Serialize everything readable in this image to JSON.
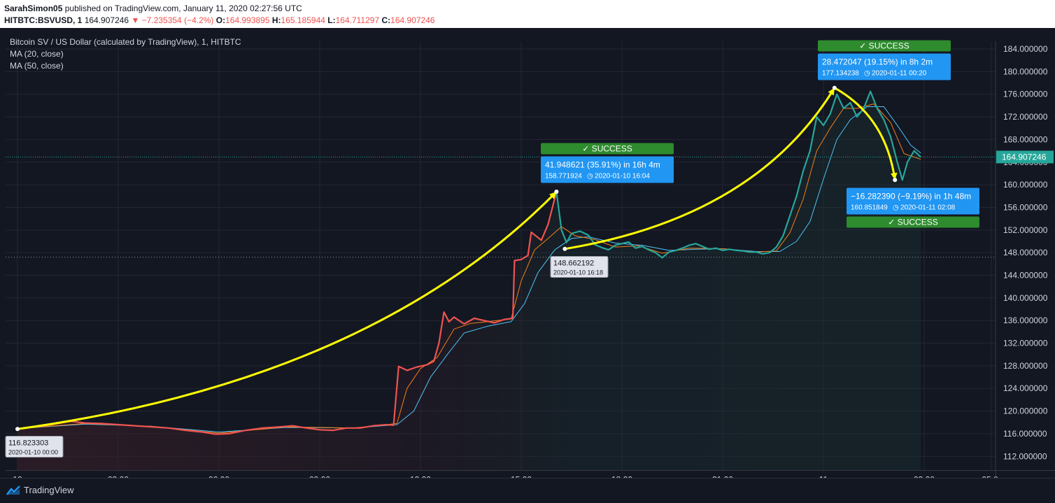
{
  "header": {
    "author": "SarahSimon05",
    "published": "published on TradingView.com, January 11, 2020 02:27:56 UTC",
    "symbol": "HITBTC:BSVUSD, 1",
    "last": "164.907246",
    "change": "−7.235354 (−4.2%)",
    "o_label": "O:",
    "o_value": "164.993895",
    "h_label": "H:",
    "h_value": "165.185944",
    "l_label": "L:",
    "l_value": "164.711297",
    "c_label": "C:",
    "c_value": "164.907246"
  },
  "legend": {
    "title": "Bitcoin SV / US Dollar (calculated by TradingView), 1, HITBTC",
    "ma20": "MA (20, close)",
    "ma50": "MA (50, close)"
  },
  "footer": {
    "brand": "TradingView"
  },
  "colors": {
    "background": "#131722",
    "grid": "#242733",
    "down": "#ef5350",
    "up": "#26a69a",
    "ma20": "#f57f17",
    "ma50": "#4fc3f7",
    "arrow": "#ffff00",
    "callout": "#2196f3",
    "success": "#2e8b2e"
  },
  "chart_data": {
    "type": "line",
    "y_ticks": [
      "112.000000",
      "116.000000",
      "120.000000",
      "124.000000",
      "128.000000",
      "132.000000",
      "136.000000",
      "140.000000",
      "144.000000",
      "148.000000",
      "152.000000",
      "156.000000",
      "160.000000",
      "164.000000",
      "168.000000",
      "172.000000",
      "176.000000",
      "180.000000",
      "184.000000"
    ],
    "ylim": [
      109.5,
      185.3
    ],
    "x_ticks": [
      "10",
      "03:00",
      "06:00",
      "09:00",
      "12:00",
      "15:00",
      "18:00",
      "21:00",
      "11",
      "03:00",
      "05:0"
    ],
    "last_price": "164.907246",
    "series": [
      {
        "values": [
          [
            0,
            116.9
          ],
          [
            0.3,
            117.1
          ],
          [
            0.7,
            117.3
          ],
          [
            1.0,
            117.6
          ],
          [
            1.3,
            117.9
          ],
          [
            1.6,
            118.2
          ],
          [
            2.0,
            117.9
          ],
          [
            2.5,
            117.8
          ],
          [
            3.0,
            117.6
          ],
          [
            3.5,
            117.4
          ],
          [
            4.0,
            117.2
          ],
          [
            4.5,
            117.0
          ],
          [
            5.0,
            116.6
          ],
          [
            5.5,
            116.3
          ],
          [
            5.9,
            115.9
          ],
          [
            6.3,
            116.0
          ],
          [
            6.8,
            116.6
          ],
          [
            7.3,
            117.0
          ],
          [
            7.8,
            117.2
          ],
          [
            8.2,
            117.4
          ],
          [
            8.6,
            117.0
          ],
          [
            9.0,
            116.7
          ],
          [
            9.4,
            116.6
          ],
          [
            9.8,
            117.0
          ],
          [
            10.2,
            117.0
          ],
          [
            10.6,
            117.4
          ],
          [
            11.0,
            117.6
          ],
          [
            11.2,
            117.5
          ],
          [
            11.35,
            127.9
          ],
          [
            11.6,
            127.2
          ],
          [
            11.9,
            127.8
          ],
          [
            12.2,
            128.2
          ],
          [
            12.4,
            128.8
          ],
          [
            12.55,
            132.0
          ],
          [
            12.7,
            137.5
          ],
          [
            12.85,
            135.8
          ],
          [
            13.0,
            136.6
          ],
          [
            13.3,
            135.4
          ],
          [
            13.6,
            136.4
          ],
          [
            13.9,
            136.0
          ],
          [
            14.2,
            135.6
          ],
          [
            14.5,
            136.2
          ],
          [
            14.75,
            136.4
          ],
          [
            14.8,
            146.6
          ],
          [
            15.0,
            146.8
          ],
          [
            15.2,
            147.5
          ],
          [
            15.3,
            151.6
          ],
          [
            15.45,
            150.9
          ],
          [
            15.6,
            150.2
          ],
          [
            15.8,
            153.0
          ],
          [
            16.05,
            158.77
          ]
        ]
      },
      {
        "values": [
          [
            16.05,
            158.77
          ],
          [
            16.2,
            152.0
          ],
          [
            16.35,
            149.8
          ],
          [
            16.5,
            151.4
          ],
          [
            16.75,
            151.8
          ],
          [
            17.0,
            151.1
          ],
          [
            17.2,
            149.4
          ],
          [
            17.4,
            148.9
          ],
          [
            17.6,
            148.5
          ],
          [
            17.8,
            149.3
          ],
          [
            18.0,
            149.6
          ],
          [
            18.2,
            149.9
          ],
          [
            18.4,
            148.8
          ],
          [
            18.6,
            149.1
          ],
          [
            18.8,
            148.5
          ],
          [
            19.0,
            148.0
          ],
          [
            19.2,
            147.1
          ],
          [
            19.4,
            148.1
          ],
          [
            19.6,
            148.4
          ],
          [
            19.8,
            148.8
          ],
          [
            20.0,
            149.3
          ],
          [
            20.2,
            149.6
          ],
          [
            20.4,
            149.1
          ],
          [
            20.6,
            148.6
          ],
          [
            20.8,
            148.8
          ],
          [
            21.0,
            148.4
          ],
          [
            21.2,
            148.6
          ],
          [
            21.4,
            148.4
          ],
          [
            21.6,
            148.3
          ],
          [
            21.8,
            148.1
          ],
          [
            22.0,
            148.1
          ],
          [
            22.2,
            147.8
          ],
          [
            22.4,
            148.0
          ],
          [
            22.6,
            149.0
          ],
          [
            22.8,
            151.0
          ],
          [
            23.0,
            154.5
          ],
          [
            23.2,
            158.0
          ],
          [
            23.4,
            162.5
          ],
          [
            23.6,
            166.0
          ],
          [
            23.8,
            172.0
          ],
          [
            24.0,
            170.5
          ],
          [
            24.2,
            172.5
          ],
          [
            24.4,
            176.0
          ],
          [
            24.6,
            173.5
          ],
          [
            24.8,
            174.5
          ],
          [
            25.0,
            172.0
          ],
          [
            25.2,
            173.5
          ],
          [
            25.4,
            176.5
          ],
          [
            25.6,
            173.5
          ],
          [
            25.8,
            171.5
          ],
          [
            26.0,
            168.5
          ],
          [
            26.2,
            164.0
          ],
          [
            26.35,
            160.85
          ],
          [
            26.5,
            164.0
          ],
          [
            26.7,
            166.0
          ],
          [
            26.9,
            164.9
          ]
        ]
      }
    ],
    "ma20": [
      [
        0,
        116.9
      ],
      [
        2,
        117.8
      ],
      [
        4,
        117.3
      ],
      [
        6,
        116.1
      ],
      [
        8,
        117.2
      ],
      [
        10,
        117.0
      ],
      [
        11.3,
        117.8
      ],
      [
        11.6,
        124.0
      ],
      [
        12.0,
        127.5
      ],
      [
        12.5,
        129.5
      ],
      [
        13.0,
        134.5
      ],
      [
        13.5,
        135.5
      ],
      [
        14.0,
        135.8
      ],
      [
        14.7,
        136.3
      ],
      [
        15.0,
        143.0
      ],
      [
        15.4,
        148.5
      ],
      [
        15.8,
        150.5
      ],
      [
        16.2,
        152.6
      ],
      [
        16.6,
        151.0
      ],
      [
        17.2,
        150.3
      ],
      [
        17.8,
        149.0
      ],
      [
        18.5,
        149.2
      ],
      [
        19.2,
        147.9
      ],
      [
        20.0,
        148.8
      ],
      [
        21.0,
        148.7
      ],
      [
        22.0,
        148.1
      ],
      [
        22.6,
        148.3
      ],
      [
        23.0,
        151.5
      ],
      [
        23.4,
        157.5
      ],
      [
        23.8,
        166.0
      ],
      [
        24.2,
        170.0
      ],
      [
        24.6,
        173.5
      ],
      [
        25.0,
        173.5
      ],
      [
        25.5,
        174.3
      ],
      [
        26.0,
        171.0
      ],
      [
        26.4,
        165.5
      ],
      [
        26.9,
        164.5
      ]
    ],
    "ma50": [
      [
        0,
        116.9
      ],
      [
        2,
        117.7
      ],
      [
        4,
        117.3
      ],
      [
        6,
        116.3
      ],
      [
        8,
        117.1
      ],
      [
        10,
        117.0
      ],
      [
        11.3,
        117.6
      ],
      [
        11.8,
        120.0
      ],
      [
        12.3,
        126.0
      ],
      [
        12.8,
        130.0
      ],
      [
        13.3,
        133.8
      ],
      [
        14.0,
        135.0
      ],
      [
        14.7,
        135.8
      ],
      [
        15.1,
        139.0
      ],
      [
        15.5,
        144.5
      ],
      [
        16.0,
        148.5
      ],
      [
        16.5,
        150.5
      ],
      [
        17.0,
        150.8
      ],
      [
        17.8,
        149.7
      ],
      [
        18.6,
        149.3
      ],
      [
        19.4,
        148.4
      ],
      [
        20.2,
        148.6
      ],
      [
        21.0,
        148.7
      ],
      [
        22.0,
        148.2
      ],
      [
        22.7,
        148.2
      ],
      [
        23.2,
        150.0
      ],
      [
        23.6,
        153.5
      ],
      [
        24.0,
        161.0
      ],
      [
        24.4,
        168.0
      ],
      [
        24.8,
        171.5
      ],
      [
        25.3,
        173.8
      ],
      [
        25.8,
        173.8
      ],
      [
        26.2,
        170.5
      ],
      [
        26.6,
        167.0
      ],
      [
        26.9,
        165.6
      ]
    ],
    "annotations": [
      {
        "status": "✓ SUCCESS",
        "change": "41.948621 (35.91%) in 16h 4m",
        "price": "158.771924",
        "time": "2020-01-10  16:04"
      },
      {
        "status": "✓ SUCCESS",
        "change": "28.472047 (19.15%) in 8h 2m",
        "price": "177.134238",
        "time": "2020-01-11  00:20"
      },
      {
        "status": "✓ SUCCESS",
        "change": "−16.282390 (−9.19%) in 1h 48m",
        "price": "160.851849",
        "time": "2020-01-11  02:08"
      }
    ],
    "point_labels": [
      {
        "price": "116.823303",
        "time": "2020-01-10 00:00"
      },
      {
        "price": "148.662192",
        "time": "2020-01-10 16:18"
      }
    ],
    "arrows": [
      [
        [
          0,
          116.82
        ],
        [
          16.05,
          158.77
        ]
      ],
      [
        [
          16.3,
          148.66
        ],
        [
          24.33,
          177.13
        ]
      ],
      [
        [
          24.33,
          177.13
        ],
        [
          26.13,
          160.85
        ]
      ]
    ],
    "marker_points": [
      [
        0,
        116.82
      ],
      [
        16.05,
        158.77
      ],
      [
        16.3,
        148.66
      ],
      [
        24.33,
        177.13
      ],
      [
        26.13,
        160.85
      ]
    ]
  }
}
